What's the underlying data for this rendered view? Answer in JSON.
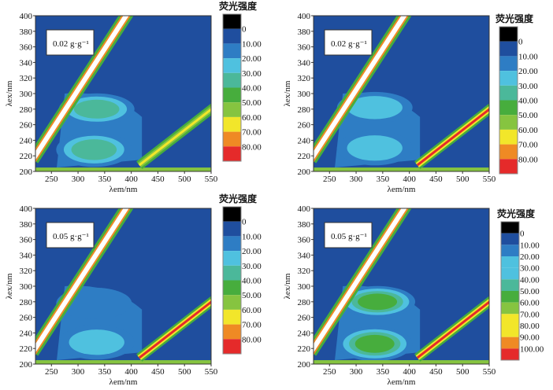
{
  "chart_data": [
    {
      "type": "heatmap",
      "title": "",
      "concentration_label": "0.02 g·g⁻¹",
      "xlabel": "λem/nm",
      "ylabel": "λex/nm",
      "xlim": [
        220,
        550
      ],
      "ylim": [
        200,
        400
      ],
      "xticks": [
        "250",
        "300",
        "350",
        "400",
        "450",
        "500",
        "550"
      ],
      "yticks": [
        "200",
        "220",
        "240",
        "260",
        "280",
        "300",
        "320",
        "340",
        "360",
        "380",
        "400"
      ],
      "legend_title": "荧光强度",
      "legend_labels": [
        "0",
        "10.00",
        "20.00",
        "30.00",
        "40.00",
        "50.00",
        "60.00",
        "70.00",
        "80.00"
      ],
      "peaks": [
        {
          "em": 335,
          "ex": 280,
          "level": 4.3
        },
        {
          "em": 330,
          "ex": 228,
          "level": 4.3
        }
      ],
      "second_order_level": 5.5
    },
    {
      "type": "heatmap",
      "title": "",
      "concentration_label": "0.02 g·g⁻¹",
      "xlabel": "λem/nm",
      "ylabel": "λex/nm",
      "xlim": [
        220,
        550
      ],
      "ylim": [
        200,
        400
      ],
      "xticks": [
        "250",
        "300",
        "350",
        "400",
        "450",
        "500",
        "550"
      ],
      "yticks": [
        "200",
        "220",
        "240",
        "260",
        "280",
        "300",
        "320",
        "340",
        "360",
        "380",
        "400"
      ],
      "legend_title": "荧光强度",
      "legend_labels": [
        "0",
        "10.00",
        "20.00",
        "30.00",
        "40.00",
        "50.00",
        "60.00",
        "70.00",
        "80.00"
      ],
      "peaks": [
        {
          "em": 335,
          "ex": 282,
          "level": 3.0
        },
        {
          "em": 335,
          "ex": 230,
          "level": 3.5
        }
      ],
      "second_order_level": 8.5
    },
    {
      "type": "heatmap",
      "title": "",
      "concentration_label": "0.05 g·g⁻¹",
      "xlabel": "λem/nm",
      "ylabel": "λex/nm",
      "xlim": [
        220,
        550
      ],
      "ylim": [
        200,
        400
      ],
      "xticks": [
        "250",
        "300",
        "350",
        "400",
        "450",
        "500",
        "550"
      ],
      "yticks": [
        "200",
        "220",
        "240",
        "260",
        "280",
        "300",
        "320",
        "340",
        "360",
        "380",
        "400"
      ],
      "legend_title": "荧光强度",
      "legend_labels": [
        "0",
        "10.00",
        "20.00",
        "30.00",
        "40.00",
        "50.00",
        "60.00",
        "70.00",
        "80.00"
      ],
      "peaks": [
        {
          "em": 330,
          "ex": 278,
          "level": 2.6
        },
        {
          "em": 335,
          "ex": 228,
          "level": 3.3
        }
      ],
      "second_order_level": 8.5
    },
    {
      "type": "heatmap",
      "title": "",
      "concentration_label": "0.05 g·g⁻¹",
      "xlabel": "λem/nm",
      "ylabel": "λex/nm",
      "xlim": [
        220,
        550
      ],
      "ylim": [
        200,
        400
      ],
      "xticks": [
        "250",
        "300",
        "350",
        "400",
        "450",
        "500",
        "550"
      ],
      "yticks": [
        "200",
        "220",
        "240",
        "260",
        "280",
        "300",
        "320",
        "340",
        "360",
        "380",
        "400"
      ],
      "legend_title": "荧光强度",
      "legend_labels": [
        "0",
        "10.00",
        "20.00",
        "30.00",
        "40.00",
        "50.00",
        "60.00",
        "70.00",
        "80.00",
        "90.00",
        "100.00"
      ],
      "peaks": [
        {
          "em": 340,
          "ex": 280,
          "level": 5.2
        },
        {
          "em": 335,
          "ex": 226,
          "level": 5.2
        }
      ],
      "second_order_level": 8.5
    }
  ],
  "colors": [
    "#000000",
    "#1f4e9e",
    "#2e7dc4",
    "#4fc1df",
    "#4bb89a",
    "#47ad3d",
    "#86c440",
    "#f2e62a",
    "#ef8a24",
    "#e52a2a"
  ]
}
